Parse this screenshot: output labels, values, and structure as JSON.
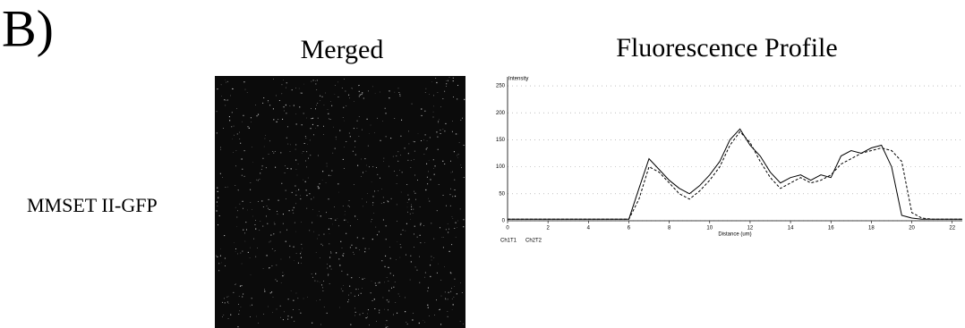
{
  "panel_label": "B)",
  "columns": [
    "Merged",
    "Fluorescence Profile"
  ],
  "row_label": "MMSET II-GFP",
  "chart_data": {
    "type": "line",
    "y_label": "Intensity",
    "x_label": "Distance (um)",
    "x": [
      0,
      0.5,
      1,
      1.5,
      2,
      2.5,
      3,
      3.5,
      4,
      4.5,
      5,
      5.5,
      6,
      6.5,
      7,
      7.5,
      8,
      8.5,
      9,
      9.5,
      10,
      10.5,
      11,
      11.5,
      12,
      12.5,
      13,
      13.5,
      14,
      14.5,
      15,
      15.5,
      16,
      16.5,
      17,
      17.5,
      18,
      18.5,
      19,
      19.5,
      20,
      20.5,
      21,
      21.5,
      22,
      22.5
    ],
    "series": [
      {
        "name": "Ch1T1",
        "color": "#000000",
        "dash": false,
        "values": [
          3,
          3,
          3,
          3,
          3,
          3,
          3,
          3,
          3,
          3,
          3,
          3,
          3,
          60,
          115,
          95,
          75,
          60,
          50,
          65,
          85,
          110,
          150,
          170,
          140,
          120,
          90,
          70,
          80,
          85,
          75,
          85,
          80,
          120,
          130,
          125,
          135,
          140,
          100,
          10,
          5,
          3,
          3,
          3,
          3,
          3
        ]
      },
      {
        "name": "Ch2T2",
        "color": "#000000",
        "dash": true,
        "values": [
          3,
          3,
          3,
          3,
          3,
          3,
          3,
          3,
          3,
          3,
          3,
          3,
          3,
          40,
          100,
          90,
          70,
          50,
          40,
          55,
          75,
          100,
          140,
          165,
          145,
          110,
          80,
          60,
          70,
          80,
          70,
          75,
          85,
          105,
          115,
          125,
          130,
          135,
          130,
          110,
          15,
          5,
          3,
          3,
          3,
          3
        ]
      }
    ],
    "xlim": [
      0,
      22.5
    ],
    "xticks": [
      0,
      2,
      4,
      6,
      8,
      10,
      12,
      14,
      16,
      18,
      20,
      22
    ],
    "ylim": [
      0,
      260
    ],
    "yticks": [
      0,
      50,
      100,
      150,
      200,
      250
    ],
    "grid": true
  }
}
